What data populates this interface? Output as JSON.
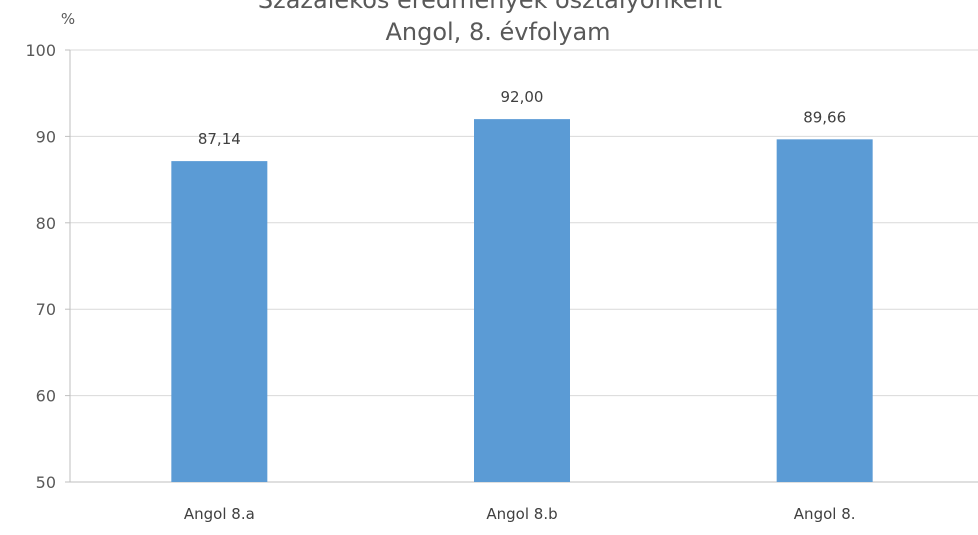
{
  "chart_data": {
    "type": "bar",
    "title_top": "Százalékos eredmények osztályonként",
    "title": "Angol, 8. évfolyam",
    "ylabel": "%",
    "xlabel": "",
    "categories": [
      "Angol 8.a",
      "Angol 8.b",
      "Angol 8."
    ],
    "values": [
      87.14,
      92.0,
      89.66
    ],
    "data_labels": [
      "87,14",
      "92,00",
      "89,66"
    ],
    "ylim": [
      50,
      100
    ],
    "yticks": [
      50,
      60,
      70,
      80,
      90,
      100
    ],
    "grid": true,
    "legend": "none",
    "bar_color": "#5b9bd5",
    "grid_color": "#d9d9d9",
    "axis_color": "#bfbfbf"
  }
}
